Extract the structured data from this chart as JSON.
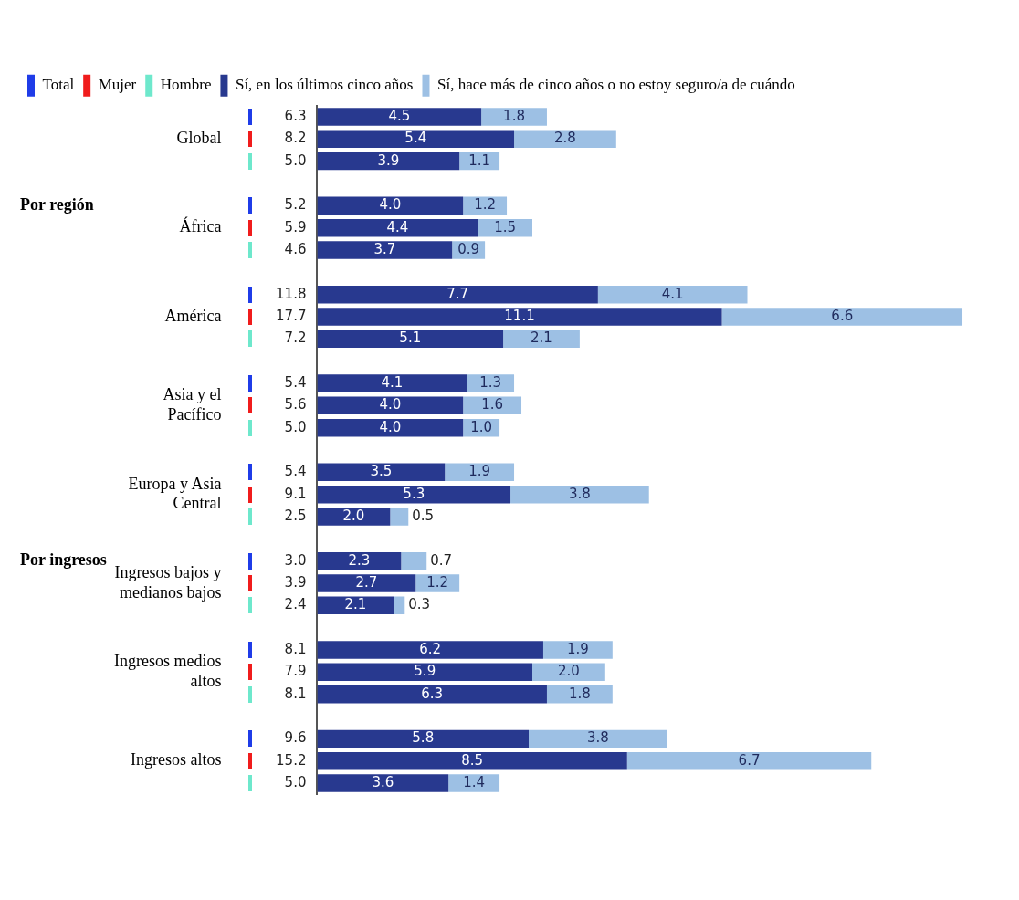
{
  "chart_data": {
    "type": "bar",
    "orientation": "horizontal",
    "stacked": true,
    "categories": [
      null,
      "Global",
      null,
      null,
      null,
      "África",
      null,
      null,
      null,
      "América",
      null,
      null,
      null,
      "Asia y el Pacífico",
      null,
      null,
      null,
      "Europa y Asia Central",
      null,
      null,
      null,
      "Ingresos bajos y medianos bajos",
      null,
      null,
      null,
      "Ingresos medios altos",
      null,
      null,
      null,
      "Ingresos altos",
      null
    ],
    "series": [
      {
        "name": "Total",
        "color": "#1f3ce8",
        "values": [
          null,
          null,
          null,
          null,
          null,
          null,
          null,
          null,
          null,
          null,
          null,
          null,
          null,
          null,
          null,
          null,
          null,
          null,
          null,
          null,
          null,
          null,
          null,
          null,
          null,
          null,
          null,
          null,
          null,
          null,
          null
        ]
      },
      {
        "name": "Mujer",
        "color": "#f01c1c",
        "values": [
          null,
          null,
          null,
          null,
          null,
          null,
          null,
          null,
          null,
          null,
          null,
          null,
          null,
          null,
          null,
          null,
          null,
          null,
          null,
          null,
          null,
          null,
          null,
          null,
          null,
          null,
          null,
          null,
          null,
          null,
          null
        ]
      },
      {
        "name": "Hombre",
        "color": "#6ee8cc",
        "values": [
          null,
          null,
          null,
          null,
          null,
          null,
          null,
          null,
          null,
          null,
          null,
          null,
          null,
          null,
          null,
          null,
          null,
          null,
          null,
          null,
          null,
          null,
          null,
          null,
          null,
          null,
          null,
          null,
          null,
          null,
          null
        ]
      },
      {
        "name": "Sí, en los últimos cinco años",
        "color": "#28398f",
        "values": [
          4.5,
          5.4,
          3.9,
          null,
          4.0,
          4.4,
          3.7,
          null,
          7.7,
          11.1,
          5.1,
          null,
          4.1,
          4.0,
          4.0,
          null,
          3.5,
          5.3,
          2.0,
          null,
          2.3,
          2.7,
          2.1,
          null,
          6.2,
          5.9,
          6.3,
          null,
          5.8,
          8.5,
          3.6
        ],
        "value_labels": [
          "4.5",
          "5.4",
          "3.9",
          null,
          "4.0",
          "4.4",
          "3.7",
          null,
          "7.7",
          "11.1",
          "5.1",
          null,
          "4.1",
          "4.0",
          "4.0",
          null,
          "3.5",
          "5.3",
          "2.0",
          null,
          "2.3",
          "2.7",
          "2.1",
          null,
          "6.2",
          "5.9",
          "6.3",
          null,
          "5.8",
          "8.5",
          "3.6"
        ]
      },
      {
        "name": "Sí, hace más de cinco años o no estoy seguro/a de cuándo",
        "color": "#9dc0e4",
        "values": [
          1.8,
          2.8,
          1.1,
          null,
          1.2,
          1.5,
          0.9,
          null,
          4.1,
          6.6,
          2.1,
          null,
          1.3,
          1.6,
          1.0,
          null,
          1.9,
          3.8,
          0.5,
          null,
          0.7,
          1.2,
          0.3,
          null,
          1.9,
          2.0,
          1.8,
          null,
          3.8,
          6.7,
          1.4
        ],
        "value_labels": [
          "1.8",
          "2.8",
          "1.1",
          null,
          "1.2",
          "1.5",
          "0.9",
          null,
          "4.1",
          "6.6",
          "2.1",
          null,
          "1.3",
          "1.6",
          "1.0",
          null,
          "1.9",
          "3.8",
          "0.5",
          null,
          "0.7",
          "1.2",
          "0.3",
          null,
          "1.9",
          "2.0",
          "1.8",
          null,
          "3.8",
          "6.7",
          "1.4"
        ]
      }
    ],
    "totals": [
      "6.3",
      "8.2",
      "5.0",
      null,
      "5.2",
      "5.9",
      "4.6",
      null,
      "11.8",
      "17.7",
      "7.2",
      null,
      "5.4",
      "5.6",
      "5.0",
      null,
      "5.4",
      "9.1",
      "2.5",
      null,
      "3.0",
      "3.9",
      "2.4",
      null,
      "8.1",
      "7.9",
      "8.1",
      null,
      "9.6",
      "15.2",
      "5.0"
    ],
    "annotations": [
      "Por región",
      "Por ingresos"
    ],
    "grid": false,
    "legend": "top left",
    "tick_labels": "y"
  }
}
